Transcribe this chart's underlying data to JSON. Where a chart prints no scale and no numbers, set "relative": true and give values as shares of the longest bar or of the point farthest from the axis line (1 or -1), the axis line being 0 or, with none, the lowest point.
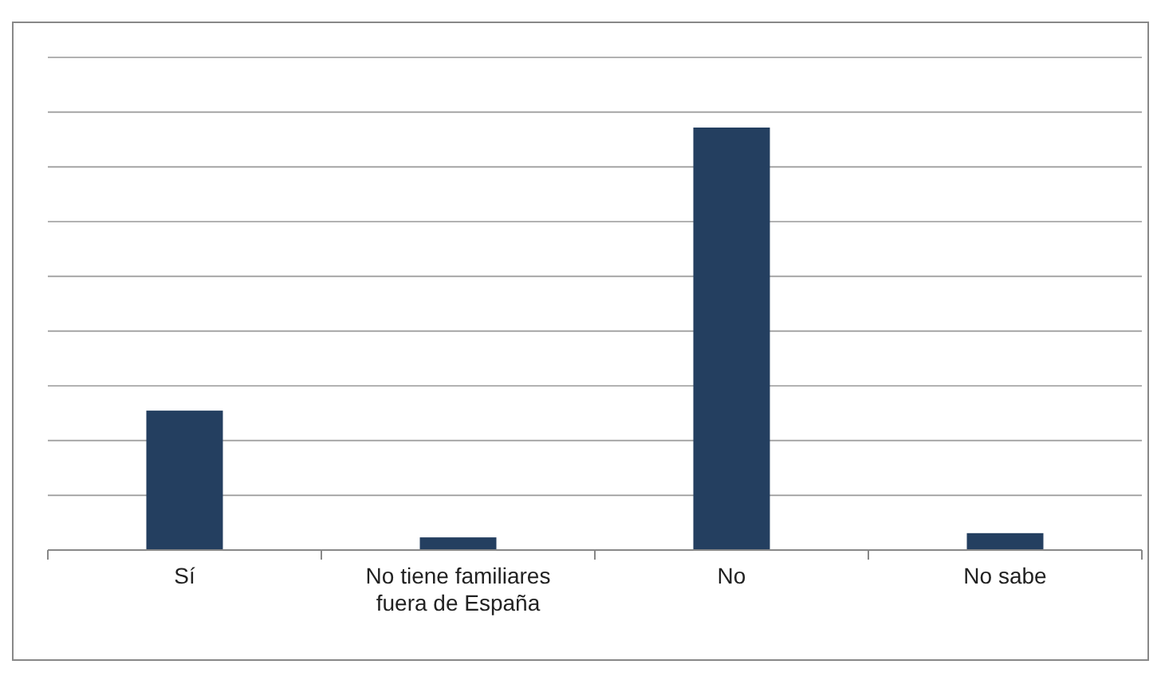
{
  "chart_data": {
    "type": "bar",
    "relative": true,
    "categories": [
      "Sí",
      "No tiene familiares fuera de España",
      "No",
      "No sabe"
    ],
    "values": [
      0.33,
      0.03,
      1,
      0.04
    ],
    "color": "#243f60",
    "grid": true
  }
}
